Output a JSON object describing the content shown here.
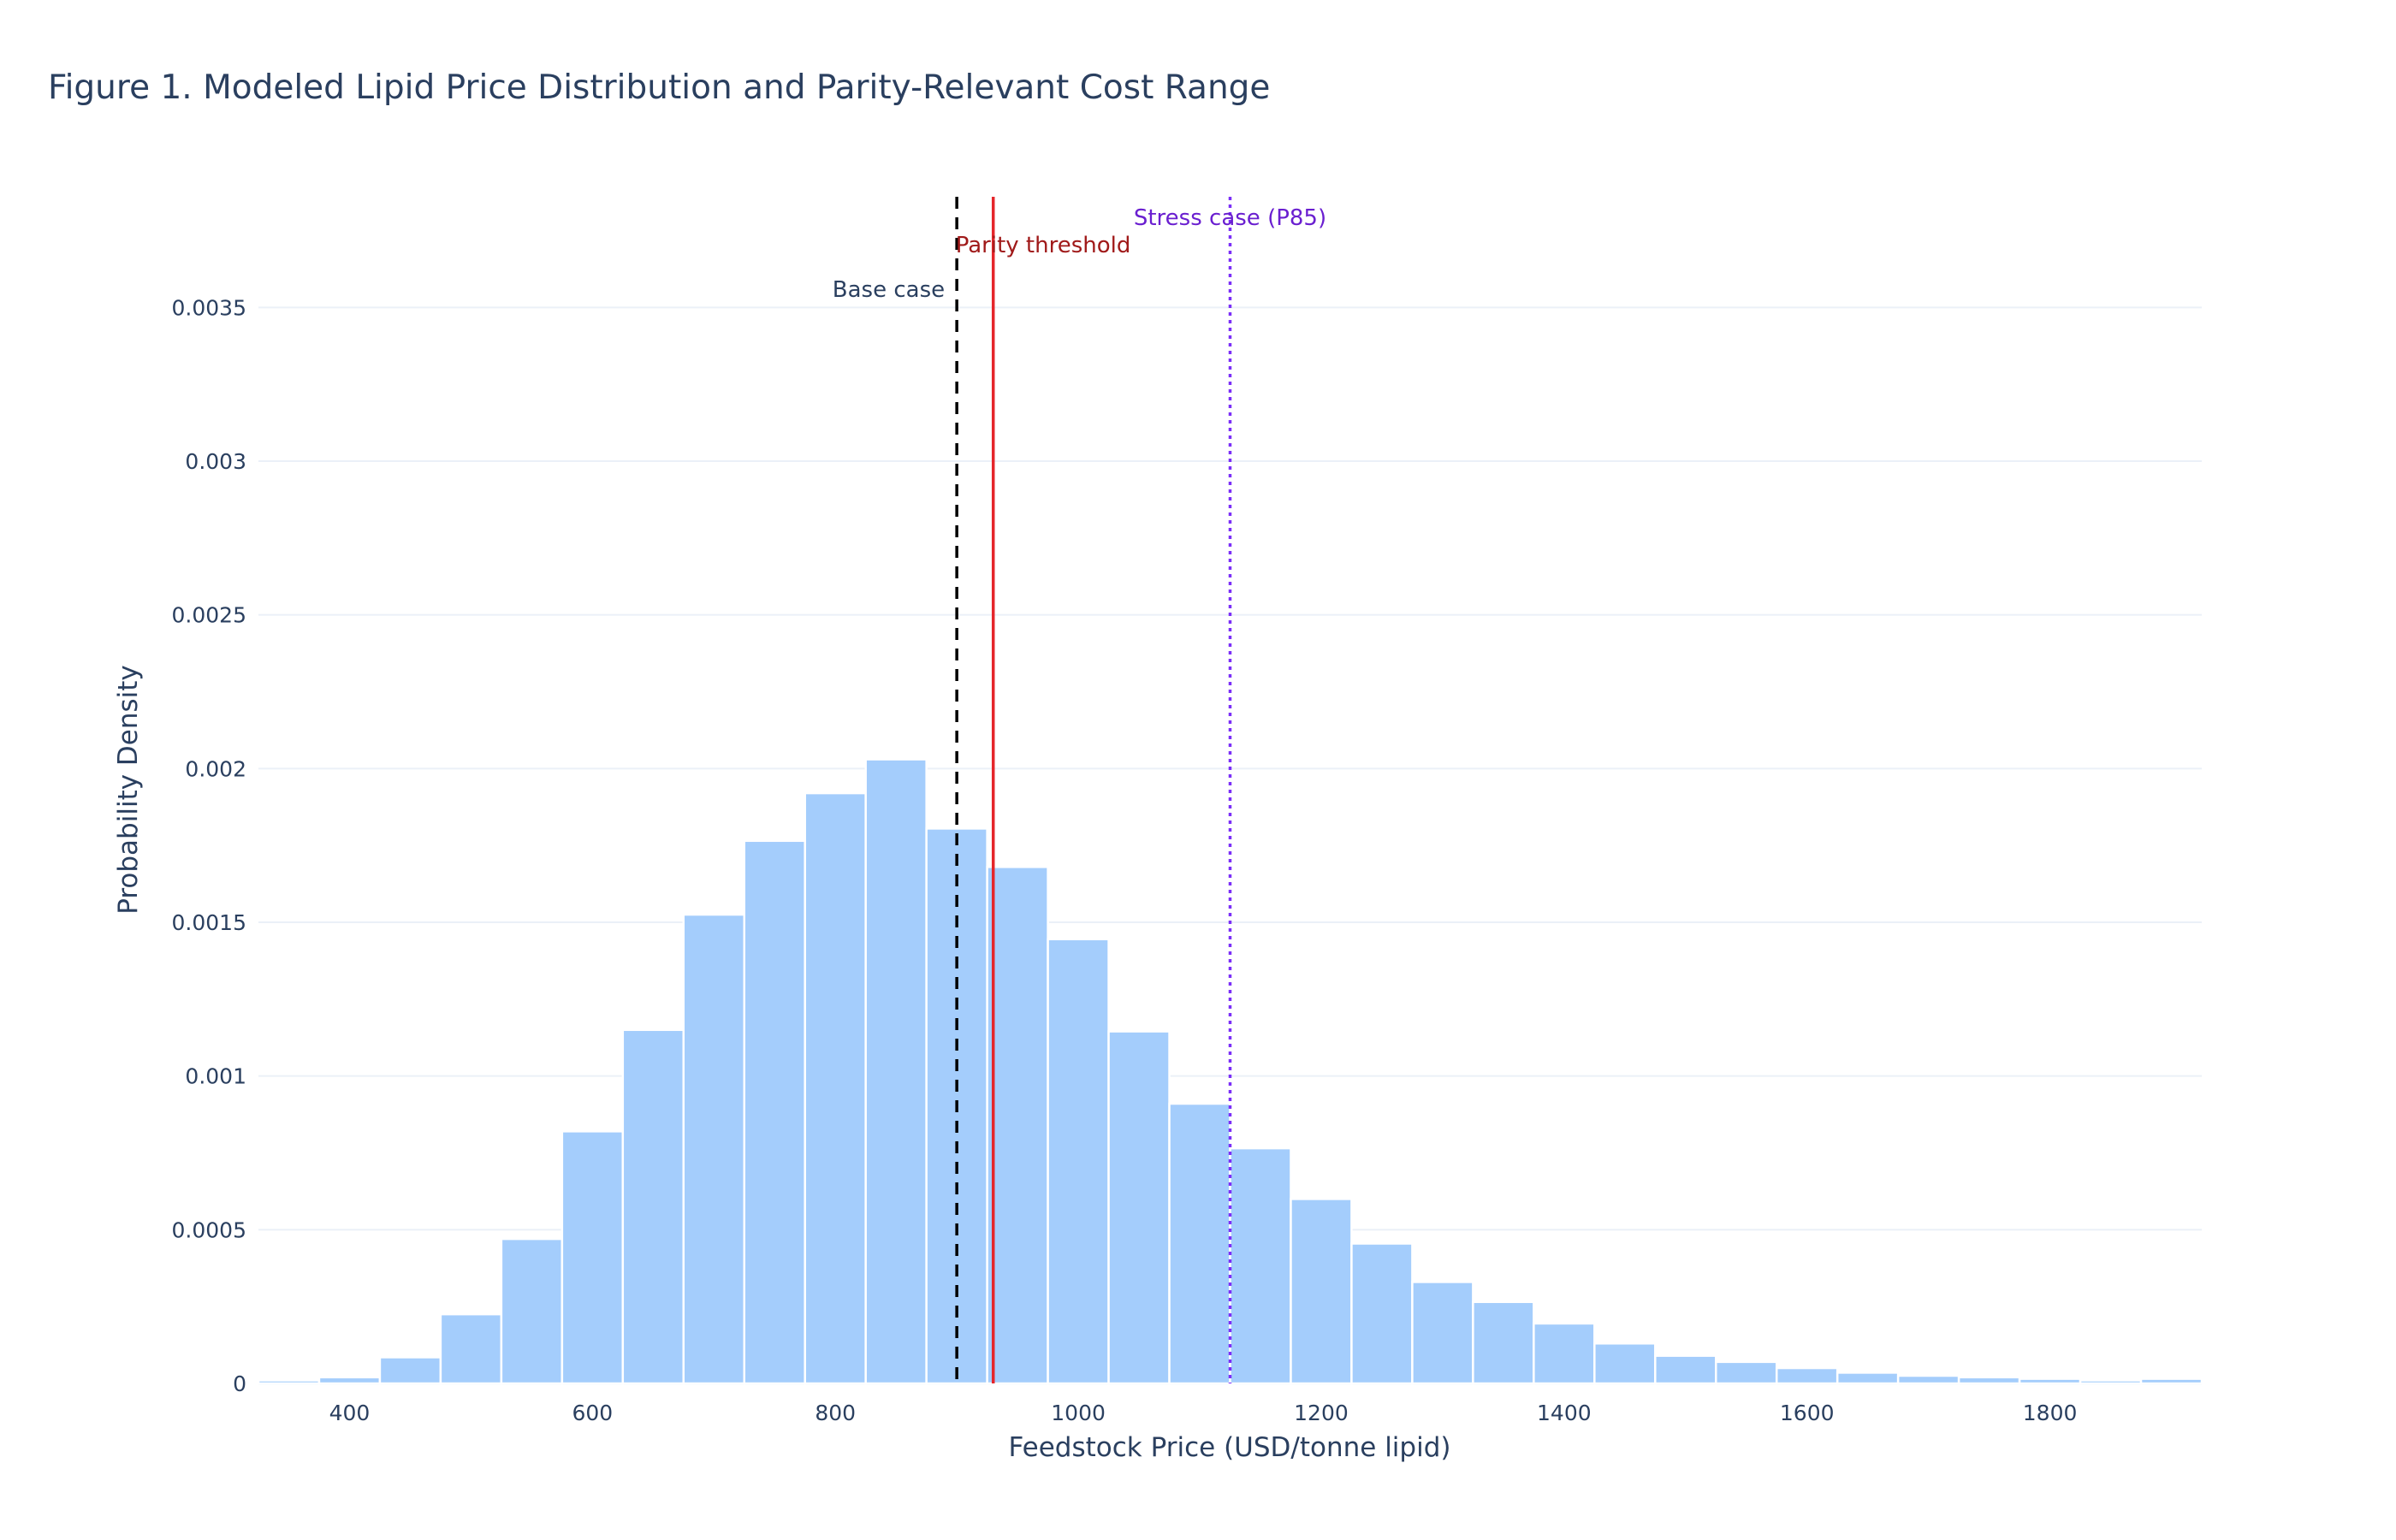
{
  "chart_data": {
    "type": "bar",
    "subtype": "histogram",
    "title": "Figure 1. Modeled Lipid Price Distribution and Parity-Relevant Cost Range",
    "xlabel": "Feedstock Price (USD/tonne lipid)",
    "ylabel": "Probability Density",
    "xlim": [
      325,
      1925
    ],
    "ylim": [
      0,
      0.00386
    ],
    "grid": true,
    "legend": "none",
    "bar_color": "#a4cdfc",
    "bin_start": 325,
    "bin_width": 50,
    "values": [
      1e-05,
      2e-05,
      8.5e-05,
      0.000225,
      0.00047,
      0.00082,
      0.00115,
      0.001525,
      0.001765,
      0.00192,
      0.00203,
      0.001805,
      0.00168,
      0.001445,
      0.001145,
      0.00091,
      0.000765,
      0.0006,
      0.000455,
      0.00033,
      0.000265,
      0.000195,
      0.00013,
      9e-05,
      7e-05,
      5e-05,
      3.5e-05,
      2.5e-05,
      2e-05,
      1.5e-05,
      1e-05,
      1.5e-05
    ],
    "x_ticks": [
      400,
      600,
      800,
      1000,
      1200,
      1400,
      1600,
      1800
    ],
    "x_tick_labels": [
      "400",
      "600",
      "800",
      "1000",
      "1200",
      "1400",
      "1600",
      "1800"
    ],
    "y_ticks": [
      0,
      0.0005,
      0.001,
      0.0015,
      0.002,
      0.0025,
      0.003,
      0.0035
    ],
    "y_tick_labels": [
      "0",
      "0.0005",
      "0.001",
      "0.0015",
      "0.002",
      "0.0025",
      "0.003",
      "0.0035"
    ],
    "reference_lines": [
      {
        "x": 900,
        "label": "Base case",
        "color": "#000000",
        "style": "dashed",
        "text_color": "#2a3f5f"
      },
      {
        "x": 930,
        "label": "Parity threshold",
        "color": "#e5262b",
        "style": "solid",
        "text_color": "#a01a1a"
      },
      {
        "x": 1125,
        "label": "Stress case (P85)",
        "color": "#7b2ff7",
        "style": "dotted",
        "text_color": "#6a1fd0"
      }
    ]
  }
}
